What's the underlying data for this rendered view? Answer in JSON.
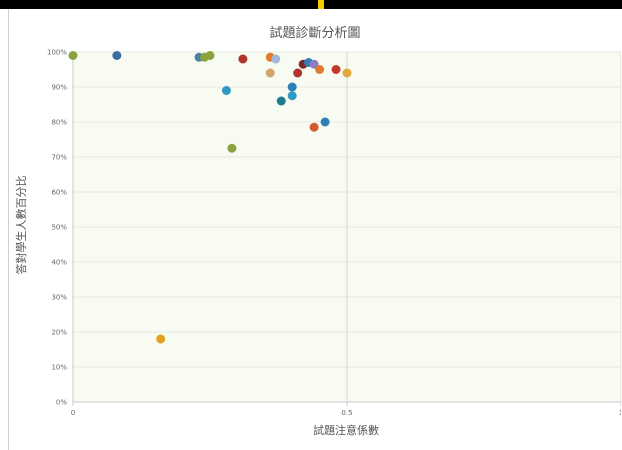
{
  "chart_data": {
    "type": "scatter",
    "title": "試題診斷分析圖",
    "xlabel": "試題注意係數",
    "ylabel": "答對學生人數百分比",
    "xlim": [
      0,
      1
    ],
    "ylim": [
      0,
      100
    ],
    "x_ticks": [
      "0",
      "0.5",
      "1"
    ],
    "y_ticks": [
      "0%",
      "10%",
      "20%",
      "30%",
      "40%",
      "50%",
      "60%",
      "70%",
      "80%",
      "90%",
      "100%"
    ],
    "grid": true,
    "legend": "none",
    "points": [
      {
        "x": 0.0,
        "y": 99,
        "color": "#8aa33a"
      },
      {
        "x": 0.08,
        "y": 99,
        "color": "#3a6ea5"
      },
      {
        "x": 0.23,
        "y": 98.5,
        "color": "#4e7fa8"
      },
      {
        "x": 0.24,
        "y": 98.5,
        "color": "#8aa33a"
      },
      {
        "x": 0.25,
        "y": 99,
        "color": "#8aa33a"
      },
      {
        "x": 0.31,
        "y": 98,
        "color": "#b0352c"
      },
      {
        "x": 0.36,
        "y": 98.5,
        "color": "#e07b2a"
      },
      {
        "x": 0.37,
        "y": 98,
        "color": "#9fb7d8"
      },
      {
        "x": 0.42,
        "y": 96.5,
        "color": "#7a2a2a"
      },
      {
        "x": 0.43,
        "y": 97,
        "color": "#2e7fb8"
      },
      {
        "x": 0.44,
        "y": 96.5,
        "color": "#8e7cc3"
      },
      {
        "x": 0.45,
        "y": 95,
        "color": "#e07b2a"
      },
      {
        "x": 0.48,
        "y": 95,
        "color": "#c0392b"
      },
      {
        "x": 0.5,
        "y": 94,
        "color": "#e0a93a"
      },
      {
        "x": 0.36,
        "y": 94,
        "color": "#d1a56b"
      },
      {
        "x": 0.41,
        "y": 94,
        "color": "#b0352c"
      },
      {
        "x": 0.28,
        "y": 89,
        "color": "#2e9ac4"
      },
      {
        "x": 0.4,
        "y": 90,
        "color": "#2e7fb8"
      },
      {
        "x": 0.4,
        "y": 87.5,
        "color": "#2e9ac4"
      },
      {
        "x": 0.38,
        "y": 86,
        "color": "#1f7a8c"
      },
      {
        "x": 0.46,
        "y": 80,
        "color": "#2e7fb8"
      },
      {
        "x": 0.44,
        "y": 78.5,
        "color": "#d35a2c"
      },
      {
        "x": 0.29,
        "y": 72.5,
        "color": "#8aa33a"
      },
      {
        "x": 0.16,
        "y": 18,
        "color": "#e0a020"
      }
    ],
    "colors": {
      "plot_background": "#f7fbf1",
      "grid": "#e4e8dd",
      "axis": "#c8c8c8"
    }
  }
}
